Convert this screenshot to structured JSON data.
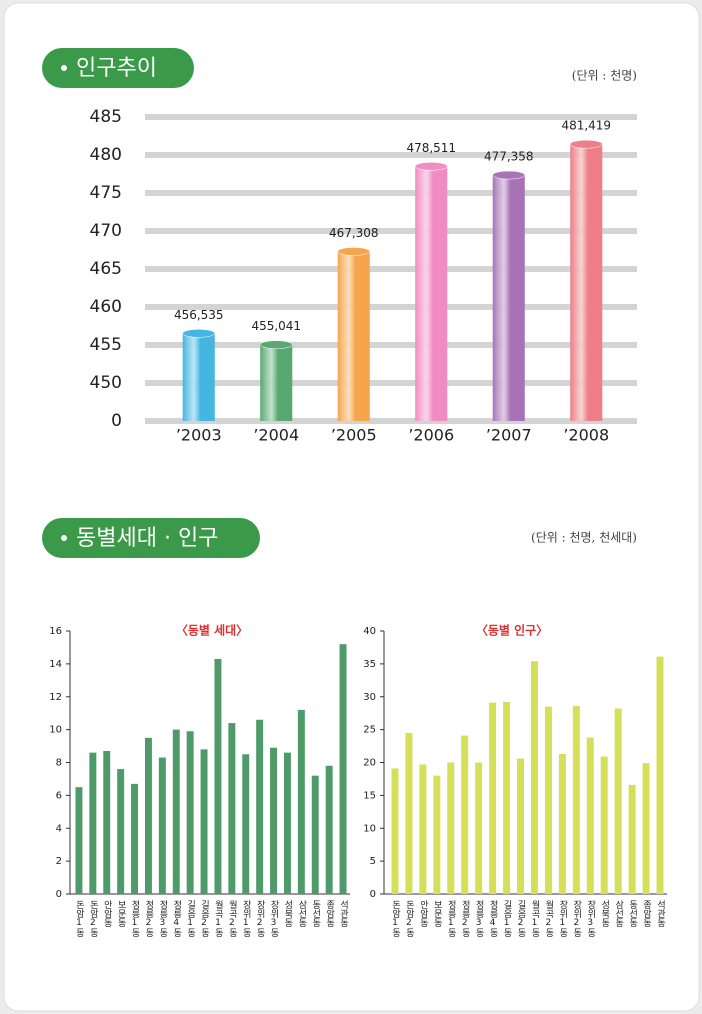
{
  "sections": [
    {
      "title": "인구추이",
      "unit": "(단위 : 천명)"
    },
    {
      "title": "동별세대 · 인구",
      "unit": "(단위 : 천명, 천세대)"
    }
  ],
  "chart_data": [
    {
      "type": "bar",
      "categories": [
        "’2003",
        "’2004",
        "’2005",
        "’2006",
        "’2007",
        "’2008"
      ],
      "values": [
        456.535,
        455.041,
        467.308,
        478.511,
        477.358,
        481.419
      ],
      "value_labels": [
        "456,535",
        "455,041",
        "467,308",
        "478,511",
        "477,358",
        "481,419"
      ],
      "colors": [
        "#45b6e2",
        "#5aa872",
        "#f5a64c",
        "#f08dc2",
        "#a874b6",
        "#ee7f88"
      ],
      "ylim": [
        0,
        485
      ],
      "yticks": [
        0,
        450,
        455,
        460,
        465,
        470,
        475,
        480,
        485
      ],
      "axis_break": true,
      "grid": true
    },
    {
      "type": "bar",
      "title": "〈동별 세대〉",
      "color": "#4e9a68",
      "categories": [
        "돈암1동",
        "돈암2동",
        "안암동",
        "보문동",
        "정릉1동",
        "정릉2동",
        "정릉3동",
        "정릉4동",
        "길음1동",
        "길음2동",
        "월곡1동",
        "월곡2동",
        "장위1동",
        "장위2동",
        "장위3동",
        "성북동",
        "삼선동",
        "동선동",
        "종암동",
        "석관동"
      ],
      "values": [
        6.5,
        8.6,
        8.7,
        7.6,
        6.7,
        9.5,
        8.3,
        10.0,
        9.9,
        8.8,
        14.3,
        10.4,
        8.5,
        10.6,
        8.9,
        8.6,
        11.2,
        7.2,
        7.8,
        15.2
      ],
      "ylim": [
        0,
        16
      ],
      "yticks": [
        0,
        2,
        4,
        6,
        8,
        10,
        12,
        14,
        16
      ]
    },
    {
      "type": "bar",
      "title": "〈동별 인구〉",
      "color": "#d5df58",
      "categories": [
        "돈암1동",
        "돈암2동",
        "안암동",
        "보문동",
        "정릉1동",
        "정릉2동",
        "정릉3동",
        "정릉4동",
        "길음1동",
        "길음2동",
        "월곡1동",
        "월곡2동",
        "장위1동",
        "장위2동",
        "장위3동",
        "성북동",
        "삼선동",
        "동선동",
        "종암동",
        "석관동"
      ],
      "values": [
        19.1,
        24.5,
        19.7,
        18.0,
        20.0,
        24.1,
        20.0,
        29.1,
        29.2,
        20.6,
        35.4,
        28.5,
        21.3,
        28.6,
        23.8,
        20.9,
        28.2,
        16.6,
        19.9,
        36.1
      ],
      "ylim": [
        0,
        40
      ],
      "yticks": [
        0,
        5,
        10,
        15,
        20,
        25,
        30,
        35,
        40
      ]
    }
  ]
}
